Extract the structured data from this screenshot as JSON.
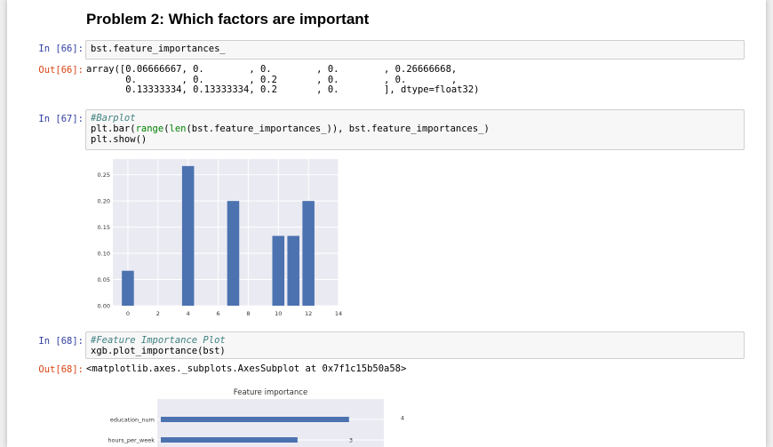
{
  "heading": "Problem 2: Which factors are important",
  "cells": {
    "c66": {
      "in_prompt": "In [66]:",
      "code": "bst.feature_importances_",
      "out_prompt": "Out[66]:",
      "output_lines": [
        "array([0.06666667, 0.        , 0.        , 0.        , 0.26666668,",
        "       0.        , 0.        , 0.2       , 0.        , 0.        ,",
        "       0.13333334, 0.13333334, 0.2       , 0.        ], dtype=float32)"
      ]
    },
    "c67": {
      "in_prompt": "In [67]:",
      "comment": "#Barplot",
      "code_line2_a": "plt.bar(",
      "code_range": "range",
      "code_paren": "(",
      "code_len": "len",
      "code_line2_b": "(bst.feature_importances_)), bst.feature_importances_)",
      "code_line3": "plt.show()"
    },
    "c68": {
      "in_prompt": "In [68]:",
      "comment": "#Feature Importance Plot",
      "code": "xgb.plot_importance(bst)",
      "out_prompt": "Out[68]:",
      "output": "<matplotlib.axes._subplots.AxesSubplot at 0x7f1c15b50a58>"
    }
  },
  "chart_data": [
    {
      "type": "bar",
      "x": [
        0,
        1,
        2,
        3,
        4,
        5,
        6,
        7,
        8,
        9,
        10,
        11,
        12,
        13
      ],
      "values": [
        0.06666667,
        0,
        0,
        0,
        0.26666668,
        0,
        0,
        0.2,
        0,
        0,
        0.13333334,
        0.13333334,
        0.2,
        0
      ],
      "xticks": [
        "0",
        "2",
        "4",
        "6",
        "8",
        "10",
        "12",
        "14"
      ],
      "yticks": [
        "0.00",
        "0.05",
        "0.10",
        "0.15",
        "0.20",
        "0.25"
      ],
      "xlim": [
        -1,
        14
      ],
      "ylim": [
        0,
        0.28
      ],
      "grid": true,
      "bar_color": "#4c72b0",
      "axes_bg": "#eaeaf2"
    },
    {
      "type": "bar",
      "orientation": "horizontal",
      "title": "Feature importance",
      "categories": [
        "education_num",
        "hours_per_week"
      ],
      "values": [
        4,
        3
      ],
      "data_labels": [
        "4",
        "3"
      ],
      "bar_color": "#4c72b0",
      "axes_bg": "#eaeaf2"
    }
  ]
}
